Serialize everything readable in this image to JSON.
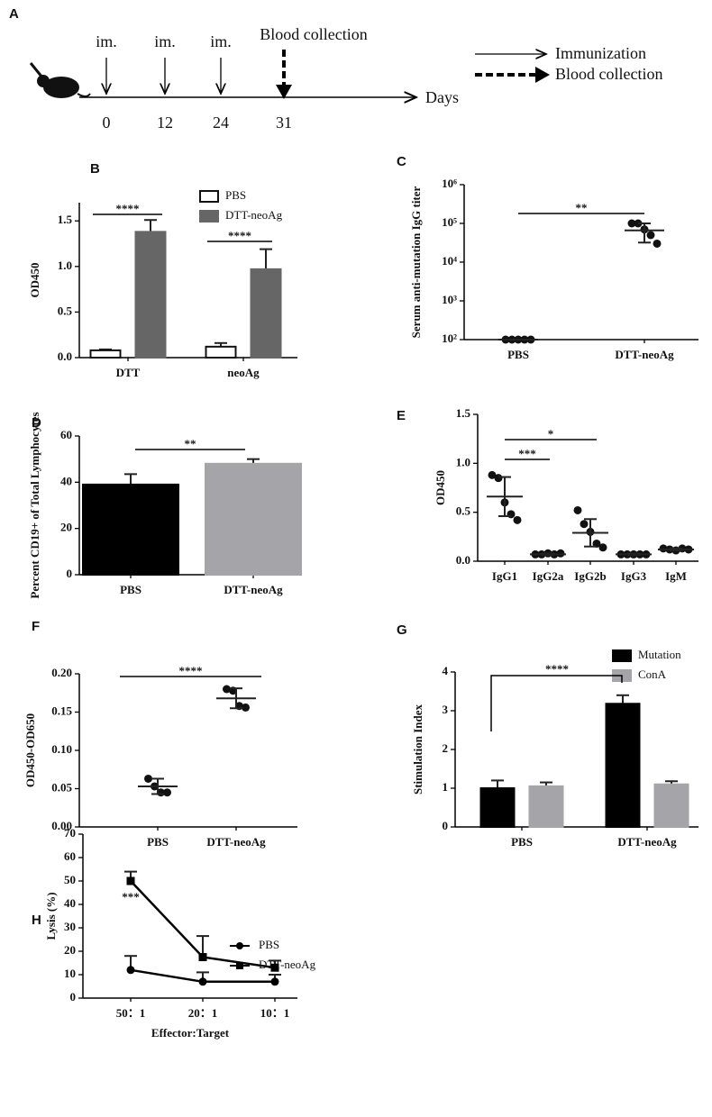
{
  "timeline": {
    "panel": "A",
    "events": [
      {
        "label": "im.",
        "day": "0"
      },
      {
        "label": "im.",
        "day": "12"
      },
      {
        "label": "im.",
        "day": "24"
      },
      {
        "label": "Blood collection",
        "day": "31"
      }
    ],
    "axis_label": "Days",
    "legend": [
      "Immunization",
      "Blood collection"
    ]
  },
  "chart_data": [
    {
      "panel": "B",
      "type": "bar",
      "ylabel": "OD450",
      "categories": [
        "DTT",
        "neoAg"
      ],
      "series": [
        {
          "name": "PBS",
          "color": "#ffffff",
          "values": [
            0.08,
            0.12
          ],
          "errors": [
            0.01,
            0.04
          ]
        },
        {
          "name": "DTT-neoAg",
          "color": "#666666",
          "values": [
            1.38,
            0.97
          ],
          "errors": [
            0.13,
            0.22
          ]
        }
      ],
      "ylim": [
        0,
        1.7
      ],
      "yticks": [
        {
          "value": 0,
          "label": "0.0"
        },
        0.5,
        {
          "value": 1,
          "label": "1.0"
        },
        1.5
      ],
      "annotations": [
        "****",
        "****"
      ]
    },
    {
      "panel": "C",
      "type": "dot",
      "ylabel": "Serum anti-mutation IgG titer",
      "categories": [
        "PBS",
        "DTT-neoAg"
      ],
      "points": [
        [
          100,
          100,
          100,
          100,
          100
        ],
        [
          100000,
          100000,
          70000,
          50000,
          30000
        ]
      ],
      "means": [
        100,
        66000
      ],
      "errors": [
        0,
        34000
      ],
      "log": true,
      "ylim": [
        100,
        1000000
      ],
      "yticks": [
        {
          "value": 100,
          "label": "10²"
        },
        {
          "value": 1000,
          "label": "10³"
        },
        {
          "value": 10000,
          "label": "10⁴"
        },
        {
          "value": 100000,
          "label": "10⁵"
        },
        {
          "value": 1000000,
          "label": "10⁶"
        }
      ],
      "annotations": [
        "**"
      ]
    },
    {
      "panel": "D",
      "type": "bar",
      "ylabel": "Percent CD19+ of Total Lymphocytes",
      "categories": [
        "PBS",
        "DTT-neoAg"
      ],
      "series": [
        {
          "colors": [
            "#000000",
            "#a5a5a9"
          ],
          "values": [
            39,
            48
          ],
          "errors": [
            4.5,
            2
          ]
        }
      ],
      "ylim": [
        0,
        60
      ],
      "yticks": [
        0,
        20,
        40,
        60
      ],
      "annotations": [
        "**"
      ]
    },
    {
      "panel": "E",
      "type": "dot",
      "ylabel": "OD450",
      "categories": [
        "IgG1",
        "IgG2a",
        "IgG2b",
        "IgG3",
        "IgM"
      ],
      "points": [
        [
          0.88,
          0.85,
          0.6,
          0.48,
          0.42
        ],
        [
          0.07,
          0.07,
          0.08,
          0.07,
          0.08
        ],
        [
          0.52,
          0.38,
          0.3,
          0.18,
          0.14
        ],
        [
          0.07,
          0.07,
          0.07,
          0.07,
          0.07
        ],
        [
          0.13,
          0.12,
          0.11,
          0.13,
          0.12
        ]
      ],
      "means": [
        0.66,
        0.07,
        0.29,
        0.07,
        0.12
      ],
      "errors": [
        0.2,
        0.01,
        0.14,
        0.01,
        0.01
      ],
      "ylim": [
        0,
        1.5
      ],
      "yticks": [
        {
          "value": 0,
          "label": "0.0"
        },
        0.5,
        {
          "value": 1,
          "label": "1.0"
        },
        1.5
      ],
      "annotations": [
        "***",
        "*"
      ]
    },
    {
      "panel": "F",
      "type": "dot",
      "ylabel": "OD450-OD650",
      "categories": [
        "PBS",
        "DTT-neoAg"
      ],
      "points": [
        [
          0.063,
          0.053,
          0.045,
          0.045
        ],
        [
          0.18,
          0.178,
          0.158,
          0.156
        ]
      ],
      "means": [
        0.053,
        0.168
      ],
      "errors": [
        0.01,
        0.013
      ],
      "ylim": [
        0,
        0.2
      ],
      "yticks": [
        {
          "value": 0,
          "label": "0.00"
        },
        {
          "value": 0.05,
          "label": "0.05"
        },
        {
          "value": 0.1,
          "label": "0.10"
        },
        {
          "value": 0.15,
          "label": "0.15"
        },
        {
          "value": 0.2,
          "label": "0.20"
        }
      ],
      "annotations": [
        "****"
      ]
    },
    {
      "panel": "G",
      "type": "bar",
      "ylabel": "Stimulation Index",
      "categories": [
        "PBS",
        "DTT-neoAg"
      ],
      "series": [
        {
          "name": "Mutation",
          "color": "#000000",
          "values": [
            1.0,
            3.18
          ],
          "errors": [
            0.2,
            0.22
          ]
        },
        {
          "name": "ConA",
          "color": "#a5a5a9",
          "values": [
            1.05,
            1.1
          ],
          "errors": [
            0.1,
            0.08
          ]
        }
      ],
      "ylim": [
        0,
        4
      ],
      "yticks": [
        0,
        1,
        2,
        3,
        4
      ],
      "annotations": [
        "****"
      ]
    },
    {
      "panel": "H",
      "type": "line",
      "ylabel": "Lysis (%)",
      "xlabel": "Effector:Target",
      "categories": [
        "50：1",
        "20：1",
        "10：1"
      ],
      "series": [
        {
          "name": "PBS",
          "marker": "circle",
          "color": "#000000",
          "values": [
            12,
            7,
            7
          ],
          "errors": [
            6,
            4,
            3
          ]
        },
        {
          "name": "DTT-neoAg",
          "marker": "square",
          "color": "#000000",
          "values": [
            50,
            17.5,
            13
          ],
          "errors": [
            4,
            9,
            3
          ]
        }
      ],
      "ylim": [
        0,
        70
      ],
      "yticks": [
        0,
        10,
        20,
        30,
        40,
        50,
        60,
        70
      ],
      "annotations": [
        "***"
      ]
    }
  ]
}
